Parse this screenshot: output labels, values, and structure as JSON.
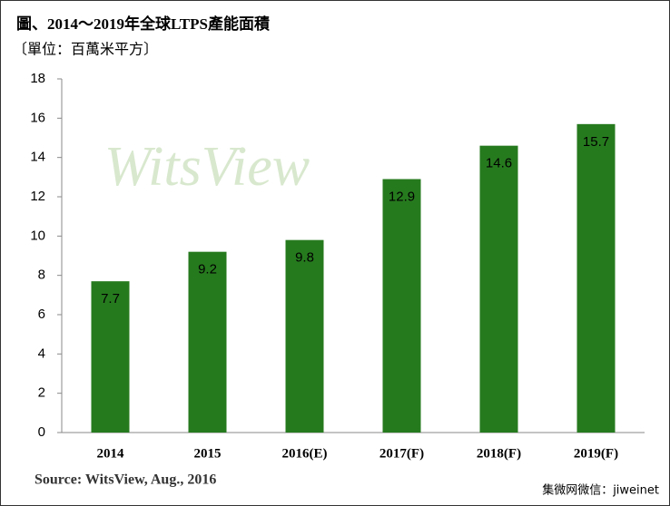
{
  "chart_data": {
    "type": "bar",
    "title": "圖、2014～2019年全球LTPS產能面積",
    "subtitle": "〔單位：百萬米平方〕",
    "watermark": "WitsView",
    "source": "Source: WitsView, Aug., 2016",
    "credit": "集微网微信：jiweinet",
    "categories": [
      "2014",
      "2015",
      "2016(E)",
      "2017(F)",
      "2018(F)",
      "2019(F)"
    ],
    "values": [
      7.7,
      9.2,
      9.8,
      12.9,
      14.6,
      15.7
    ],
    "color": "#267a1e",
    "ylim": [
      0,
      18
    ],
    "yticks": [
      0,
      2,
      4,
      6,
      8,
      10,
      12,
      14,
      16,
      18
    ],
    "grid": false
  }
}
